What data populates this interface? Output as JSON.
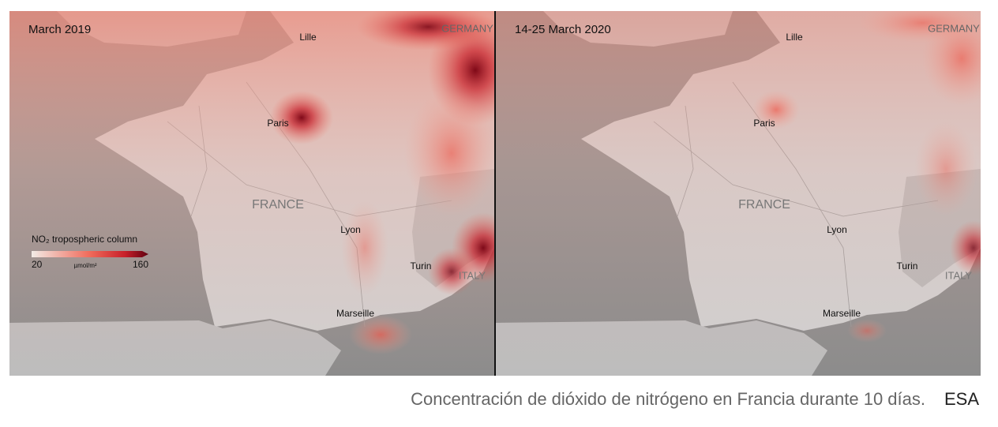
{
  "panels": [
    {
      "title": "March 2019",
      "labels": [
        "GERMANY",
        "Lille",
        "Paris",
        "FRANCE",
        "Lyon",
        "Turin",
        "ITALY",
        "Marseille"
      ]
    },
    {
      "title": "14-25 March 2020",
      "labels": [
        "GERMANY",
        "Lille",
        "Paris",
        "FRANCE",
        "Lyon",
        "Turin",
        "ITALY",
        "Marseille"
      ]
    }
  ],
  "legend": {
    "title": "NO₂ tropospheric column",
    "min": "20",
    "unit": "µmol/m²",
    "max": "160"
  },
  "caption": {
    "text": "Concentración de dióxido de nitrógeno en Francia durante 10 días.",
    "credit": "ESA"
  }
}
